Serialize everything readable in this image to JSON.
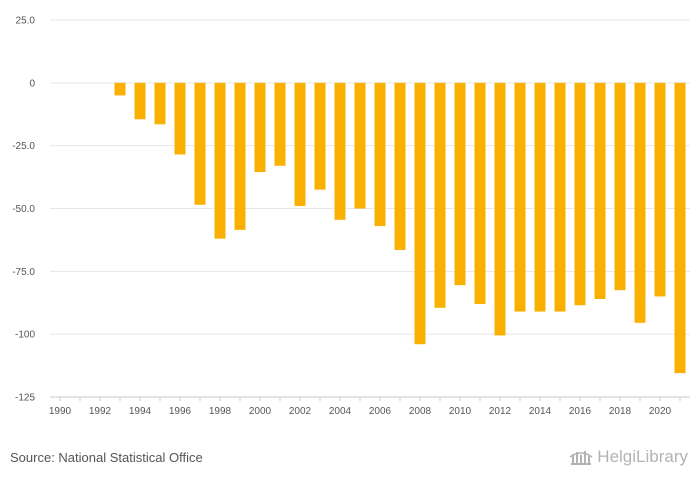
{
  "chart_data": {
    "type": "bar",
    "categories": [
      "1990",
      "1991",
      "1992",
      "1993",
      "1994",
      "1995",
      "1996",
      "1997",
      "1998",
      "1999",
      "2000",
      "2001",
      "2002",
      "2003",
      "2004",
      "2005",
      "2006",
      "2007",
      "2008",
      "2009",
      "2010",
      "2011",
      "2012",
      "2013",
      "2014",
      "2015",
      "2016",
      "2017",
      "2018",
      "2019",
      "2020",
      "2021"
    ],
    "values": [
      null,
      null,
      null,
      -5,
      -14.5,
      -16.5,
      -28.5,
      -48.5,
      -62,
      -58.5,
      -35.5,
      -33,
      -49,
      -42.5,
      -54.5,
      -50,
      -57,
      -66.5,
      -104,
      -89.5,
      -80.5,
      -88,
      -100.5,
      -91,
      -91,
      -91,
      -88.5,
      -86,
      -82.5,
      -95.5,
      -85,
      -115.5
    ],
    "yticks": [
      25,
      0,
      -25,
      -50,
      -75,
      -100,
      -125
    ],
    "ytick_labels": [
      "25.0",
      "0",
      "-25.0",
      "-50.0",
      "-75.0",
      "-100",
      "-125"
    ],
    "xtick_labels": [
      "1990",
      "1992",
      "1994",
      "1996",
      "1998",
      "2000",
      "2002",
      "2004",
      "2006",
      "2008",
      "2010",
      "2012",
      "2014",
      "2016",
      "2018",
      "2020"
    ],
    "ylim": [
      -125,
      25
    ],
    "title": "",
    "xlabel": "",
    "ylabel": "",
    "grid": true,
    "bar_color": "#F9B000"
  },
  "footer": {
    "source": "Source: National Statistical Office",
    "brand": "HelgiLibrary"
  }
}
